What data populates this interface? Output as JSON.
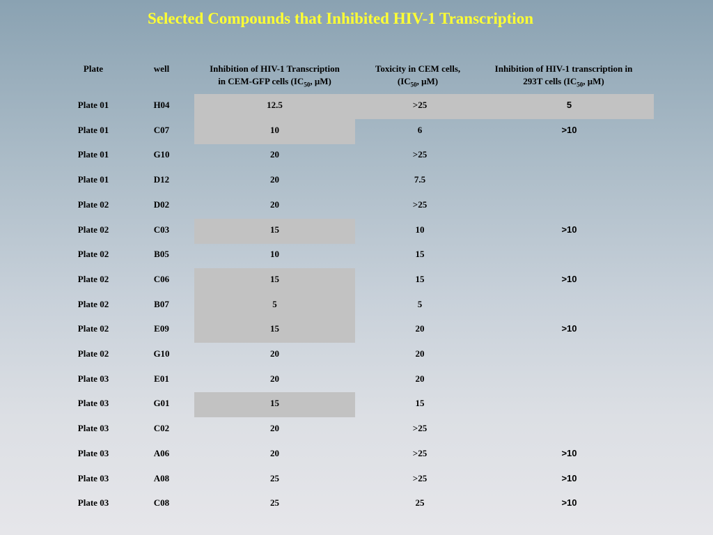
{
  "title": "Selected Compounds that Inhibited HIV-1 Transcription",
  "headers": {
    "plate": "Plate",
    "well": "well",
    "inhibition_line1": "Inhibition of HIV-1 Transcription",
    "inhibition_line2_pre": "in CEM-GFP cells (IC",
    "inhibition_sub": "50",
    "inhibition_line2_post": ", μM)",
    "toxicity_line1": "Toxicity in CEM cells,",
    "toxicity_line2_pre": "(IC",
    "toxicity_sub": "50",
    "toxicity_line2_post": ", μM)",
    "t293_line1": "Inhibition of HIV-1 transcription in",
    "t293_line2_pre": "293T cells (IC",
    "t293_sub": "50",
    "t293_line2_post": ", μM)"
  },
  "rows": [
    {
      "plate": "Plate 01",
      "well": "H04",
      "inhibition": "12.5",
      "toxicity": ">25",
      "t293": "5"
    },
    {
      "plate": "Plate 01",
      "well": "C07",
      "inhibition": "10",
      "toxicity": "6",
      "t293": ">10"
    },
    {
      "plate": "Plate 01",
      "well": "G10",
      "inhibition": "20",
      "toxicity": ">25",
      "t293": ""
    },
    {
      "plate": "Plate 01",
      "well": "D12",
      "inhibition": "20",
      "toxicity": "7.5",
      "t293": ""
    },
    {
      "plate": "Plate 02",
      "well": "D02",
      "inhibition": "20",
      "toxicity": ">25",
      "t293": ""
    },
    {
      "plate": "Plate 02",
      "well": "C03",
      "inhibition": "15",
      "toxicity": "10",
      "t293": ">10"
    },
    {
      "plate": "Plate 02",
      "well": "B05",
      "inhibition": "10",
      "toxicity": "15",
      "t293": ""
    },
    {
      "plate": "Plate 02",
      "well": "C06",
      "inhibition": "15",
      "toxicity": "15",
      "t293": ">10"
    },
    {
      "plate": "Plate 02",
      "well": "B07",
      "inhibition": "5",
      "toxicity": "5",
      "t293": ""
    },
    {
      "plate": "Plate 02",
      "well": "E09",
      "inhibition": "15",
      "toxicity": "20",
      "t293": ">10"
    },
    {
      "plate": "Plate 02",
      "well": "G10",
      "inhibition": "20",
      "toxicity": "20",
      "t293": ""
    },
    {
      "plate": "Plate 03",
      "well": "E01",
      "inhibition": "20",
      "toxicity": "20",
      "t293": ""
    },
    {
      "plate": "Plate 03",
      "well": "G01",
      "inhibition": "15",
      "toxicity": "15",
      "t293": ""
    },
    {
      "plate": "Plate 03",
      "well": "C02",
      "inhibition": "20",
      "toxicity": ">25",
      "t293": ""
    },
    {
      "plate": "Plate 03",
      "well": "A06",
      "inhibition": "20",
      "toxicity": ">25",
      "t293": ">10"
    },
    {
      "plate": "Plate 03",
      "well": "A08",
      "inhibition": "25",
      "toxicity": ">25",
      "t293": ">10"
    },
    {
      "plate": "Plate 03",
      "well": "C08",
      "inhibition": "25",
      "toxicity": "25",
      "t293": ">10"
    }
  ]
}
